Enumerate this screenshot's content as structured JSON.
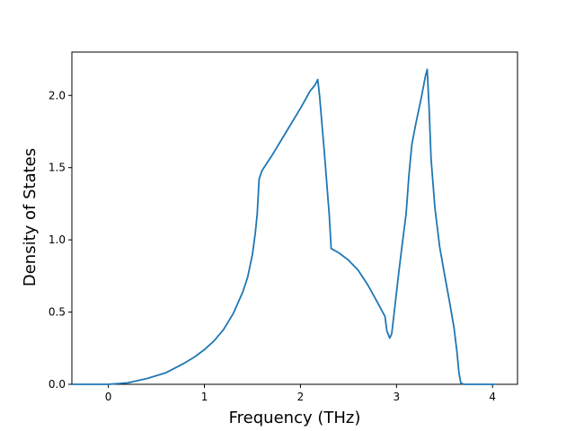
{
  "chart_data": {
    "type": "line",
    "title": "",
    "xlabel": "Frequency (THz)",
    "ylabel": "Density of States",
    "xlim": [
      -0.38,
      4.26
    ],
    "ylim": [
      0.0,
      2.3
    ],
    "xticks": [
      0,
      1,
      2,
      3,
      4
    ],
    "xtick_labels": [
      "0",
      "1",
      "2",
      "3",
      "4"
    ],
    "yticks": [
      0.0,
      0.5,
      1.0,
      1.5,
      2.0
    ],
    "ytick_labels": [
      "0.0",
      "0.5",
      "1.0",
      "1.5",
      "2.0"
    ],
    "grid": false,
    "legend": "none",
    "colors": {
      "series": "#1f77b4",
      "axes": "#000000",
      "background": "#ffffff"
    },
    "series": [
      {
        "x": [
          -0.37,
          -0.2,
          0.0,
          0.2,
          0.4,
          0.6,
          0.8,
          0.9,
          1.0,
          1.1,
          1.2,
          1.3,
          1.4,
          1.45,
          1.5,
          1.53,
          1.55,
          1.57,
          1.6,
          1.7,
          1.8,
          1.9,
          2.0,
          2.05,
          2.1,
          2.15,
          2.18,
          2.2,
          2.25,
          2.3,
          2.32,
          2.4,
          2.5,
          2.6,
          2.7,
          2.8,
          2.88,
          2.9,
          2.93,
          2.95,
          2.98,
          3.02,
          3.06,
          3.1,
          3.13,
          3.16,
          3.2,
          3.26,
          3.3,
          3.32,
          3.34,
          3.36,
          3.4,
          3.45,
          3.5,
          3.55,
          3.6,
          3.63,
          3.65,
          3.67,
          3.7,
          3.8,
          4.02
        ],
        "y": [
          0.0,
          0.0,
          0.0,
          0.01,
          0.04,
          0.08,
          0.15,
          0.19,
          0.24,
          0.3,
          0.38,
          0.49,
          0.64,
          0.74,
          0.9,
          1.05,
          1.18,
          1.42,
          1.48,
          1.58,
          1.69,
          1.8,
          1.91,
          1.97,
          2.03,
          2.07,
          2.11,
          1.99,
          1.6,
          1.17,
          0.94,
          0.91,
          0.86,
          0.79,
          0.69,
          0.57,
          0.47,
          0.37,
          0.32,
          0.35,
          0.52,
          0.75,
          0.97,
          1.18,
          1.45,
          1.66,
          1.8,
          1.99,
          2.13,
          2.18,
          1.9,
          1.56,
          1.22,
          0.95,
          0.76,
          0.58,
          0.39,
          0.22,
          0.08,
          0.01,
          0.0,
          0.0,
          0.0
        ]
      }
    ]
  }
}
